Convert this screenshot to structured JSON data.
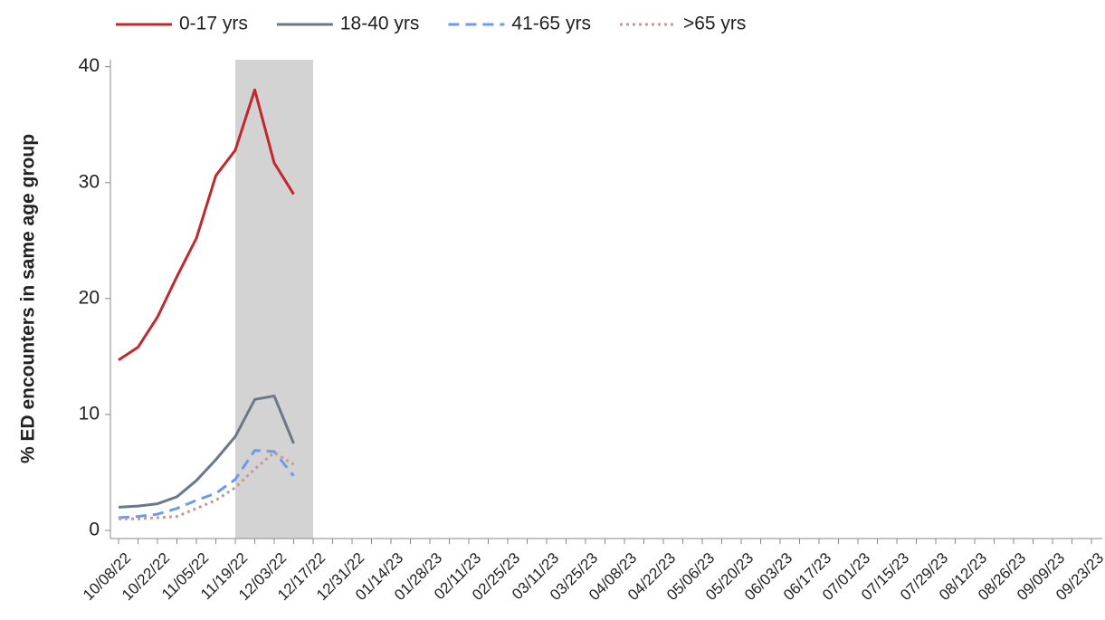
{
  "chart_data": {
    "type": "line",
    "y_label": "% ED encounters in same age group",
    "categories": [
      "10/08/22",
      null,
      "10/22/22",
      null,
      "11/05/22",
      null,
      "11/19/22",
      null,
      "12/03/22",
      null,
      "12/17/22",
      null,
      "12/31/22",
      null,
      "01/14/23",
      null,
      "01/28/23",
      null,
      "02/11/23",
      null,
      "02/25/23",
      null,
      "03/11/23",
      null,
      "03/25/23",
      null,
      "04/08/23",
      null,
      "04/22/23",
      null,
      "05/06/23",
      null,
      "05/20/23",
      null,
      "06/03/23",
      null,
      "06/17/23",
      null,
      "07/01/23",
      null,
      "07/15/23",
      null,
      "07/29/23",
      null,
      "08/12/23",
      null,
      "08/26/23",
      null,
      "09/09/23",
      null,
      "09/23/23",
      null
    ],
    "series": [
      {
        "name": "0-17 yrs",
        "color": "#c0282d",
        "dash": "solid",
        "values": [
          14.7,
          15.8,
          18.4,
          21.9,
          25.2,
          30.6,
          32.8,
          38.0,
          31.7,
          29.0,
          null,
          null,
          null,
          null,
          null,
          null,
          null,
          null,
          null,
          null,
          null,
          null,
          null,
          null,
          null,
          null,
          null,
          null,
          null,
          null,
          null,
          null,
          null,
          null,
          null,
          null,
          null,
          null,
          null,
          null,
          null,
          null,
          null,
          null,
          null,
          null,
          null,
          null,
          null,
          null,
          null,
          null
        ]
      },
      {
        "name": "18-40 yrs",
        "color": "#6b7888",
        "dash": "solid",
        "values": [
          2.0,
          2.1,
          2.3,
          2.9,
          4.3,
          6.1,
          8.1,
          11.3,
          11.6,
          7.5,
          null,
          null,
          null,
          null,
          null,
          null,
          null,
          null,
          null,
          null,
          null,
          null,
          null,
          null,
          null,
          null,
          null,
          null,
          null,
          null,
          null,
          null,
          null,
          null,
          null,
          null,
          null,
          null,
          null,
          null,
          null,
          null,
          null,
          null,
          null,
          null,
          null,
          null,
          null,
          null,
          null,
          null
        ]
      },
      {
        "name": "41-65 yrs",
        "color": "#6d9be8",
        "dash": "dashed",
        "values": [
          1.1,
          1.2,
          1.4,
          1.9,
          2.6,
          3.2,
          4.4,
          6.9,
          6.8,
          4.7,
          null,
          null,
          null,
          null,
          null,
          null,
          null,
          null,
          null,
          null,
          null,
          null,
          null,
          null,
          null,
          null,
          null,
          null,
          null,
          null,
          null,
          null,
          null,
          null,
          null,
          null,
          null,
          null,
          null,
          null,
          null,
          null,
          null,
          null,
          null,
          null,
          null,
          null,
          null,
          null,
          null,
          null
        ]
      },
      {
        "name": ">65 yrs",
        "color": "#c49a94",
        "dash": "dotted",
        "values": [
          1.0,
          1.0,
          1.1,
          1.2,
          1.9,
          2.6,
          3.7,
          5.3,
          6.7,
          5.7,
          null,
          null,
          null,
          null,
          null,
          null,
          null,
          null,
          null,
          null,
          null,
          null,
          null,
          null,
          null,
          null,
          null,
          null,
          null,
          null,
          null,
          null,
          null,
          null,
          null,
          null,
          null,
          null,
          null,
          null,
          null,
          null,
          null,
          null,
          null,
          null,
          null,
          null,
          null,
          null,
          null,
          null
        ]
      }
    ],
    "highlight": {
      "from": "11/19/22",
      "to": "12/17/22",
      "color": "#d3d3d3"
    },
    "ylim": [
      -0.7,
      40.6
    ],
    "yticks": [
      0,
      10,
      20,
      30,
      40
    ],
    "legend": "top"
  }
}
